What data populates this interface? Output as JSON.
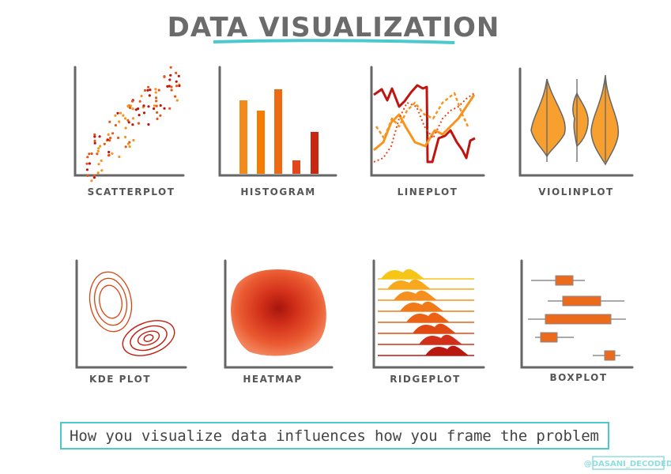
{
  "title": "DATA VISUALIZATION",
  "plots": [
    {
      "label": "SCATTERPLOT"
    },
    {
      "label": "HISTOGRAM"
    },
    {
      "label": "LINEPLOT"
    },
    {
      "label": "VIOLINPLOT"
    },
    {
      "label": "KDE PLOT"
    },
    {
      "label": "HEATMAP"
    },
    {
      "label": "RIDGEPLOT"
    },
    {
      "label": "BOXPLOT"
    }
  ],
  "caption": "How you visualize data influences how you frame the problem",
  "watermark": "@DASANI_DECODED",
  "colors": {
    "accent": "#4cc9cc",
    "orange": "#f7941d",
    "red": "#c0150f",
    "dark_orange": "#e8561a",
    "axis": "#666666"
  }
}
